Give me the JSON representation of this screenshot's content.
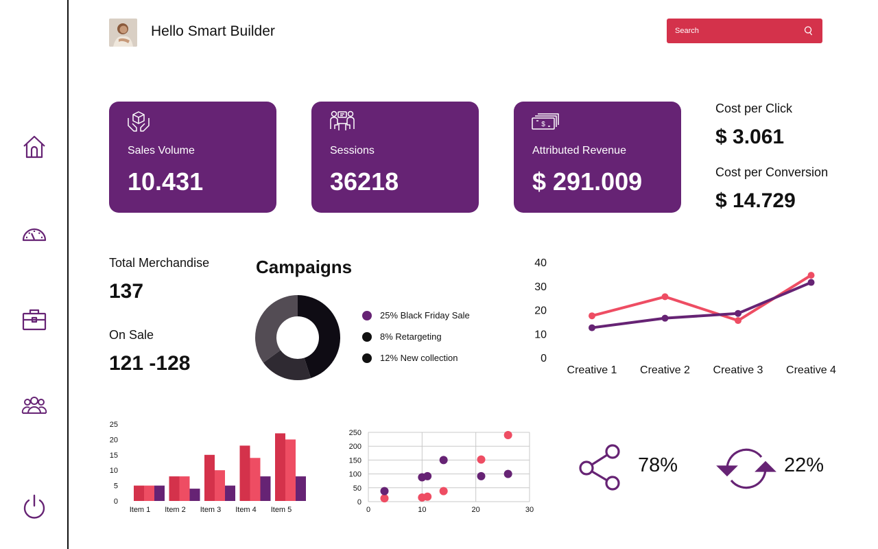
{
  "header": {
    "greeting": "Hello Smart Builder",
    "search_placeholder": "Search"
  },
  "sidebar": {
    "items": [
      {
        "name": "home",
        "icon": "home-icon"
      },
      {
        "name": "dashboard",
        "icon": "gauge-icon"
      },
      {
        "name": "briefcase",
        "icon": "briefcase-icon"
      },
      {
        "name": "users",
        "icon": "users-icon"
      },
      {
        "name": "power",
        "icon": "power-icon"
      }
    ]
  },
  "cards": [
    {
      "label": "Sales Volume",
      "value": "10.431",
      "icon": "box-hands-icon"
    },
    {
      "label": "Sessions",
      "value": "36218",
      "icon": "meeting-icon"
    },
    {
      "label": "Attributed Revenue",
      "value": "$ 291.009",
      "icon": "cash-icon"
    }
  ],
  "costs": {
    "cpc_label": "Cost per Click",
    "cpc_value": "$ 3.061",
    "cpconv_label": "Cost per Conversion",
    "cpconv_value": "$ 14.729"
  },
  "merch": {
    "total_label": "Total Merchandise",
    "total_value": "137",
    "sale_label": "On Sale",
    "sale_value": "121 -128"
  },
  "campaigns": {
    "title": "Campaigns",
    "legend": [
      {
        "label": "25% Black Friday Sale",
        "color": "#662374"
      },
      {
        "label": "8% Retargeting",
        "color": "#111111"
      },
      {
        "label": "12% New collection",
        "color": "#111111"
      }
    ]
  },
  "stats": {
    "share_value": "78%",
    "refresh_value": "22%"
  },
  "colors": {
    "purple": "#662374",
    "red": "#d4324b",
    "pink": "#ee4d63",
    "dark": "#111111"
  },
  "chart_data": [
    {
      "type": "pie",
      "donut": true,
      "values": [
        45,
        20,
        35
      ],
      "colors": [
        "#0f0c14",
        "#2f2a32",
        "#534c54"
      ]
    },
    {
      "type": "line",
      "categories": [
        "Creative 1",
        "Creative 2",
        "Creative 3",
        "Creative 4"
      ],
      "yticks": [
        "0",
        "10",
        "20",
        "30",
        "40"
      ],
      "ylim": [
        0,
        40
      ],
      "series": [
        {
          "values": [
            17.5,
            25.5,
            15.5,
            34.5
          ],
          "color": "#ee4d63"
        },
        {
          "values": [
            12.5,
            16.5,
            18.5,
            31.5
          ],
          "color": "#662374"
        }
      ]
    },
    {
      "type": "bar",
      "categories": [
        "Item 1",
        "Item 2",
        "Item 3",
        "Item 4",
        "Item 5"
      ],
      "yticks": [
        "0",
        "5",
        "10",
        "15",
        "20",
        "25"
      ],
      "ylim": [
        0,
        25
      ],
      "series": [
        {
          "values": [
            5,
            8,
            15,
            18,
            22
          ],
          "color": "#d4324b"
        },
        {
          "values": [
            5,
            8,
            10,
            14,
            20
          ],
          "color": "#ee4d63"
        },
        {
          "values": [
            5,
            4,
            5,
            8,
            8
          ],
          "color": "#662374"
        }
      ]
    },
    {
      "type": "scatter",
      "xticks": [
        "0",
        "10",
        "20",
        "30"
      ],
      "yticks": [
        "0",
        "50",
        "100",
        "150",
        "200",
        "250"
      ],
      "xlim": [
        0,
        30
      ],
      "ylim": [
        0,
        250
      ],
      "grid": true,
      "series": [
        {
          "color": "#ee4d63",
          "points": [
            [
              3,
              12
            ],
            [
              10,
              15
            ],
            [
              11,
              18
            ],
            [
              14,
              38
            ],
            [
              21,
              152
            ],
            [
              26,
              240
            ]
          ]
        },
        {
          "color": "#662374",
          "points": [
            [
              3,
              38
            ],
            [
              10,
              88
            ],
            [
              11,
              92
            ],
            [
              14,
              150
            ],
            [
              21,
              92
            ],
            [
              26,
              100
            ]
          ]
        }
      ]
    }
  ]
}
